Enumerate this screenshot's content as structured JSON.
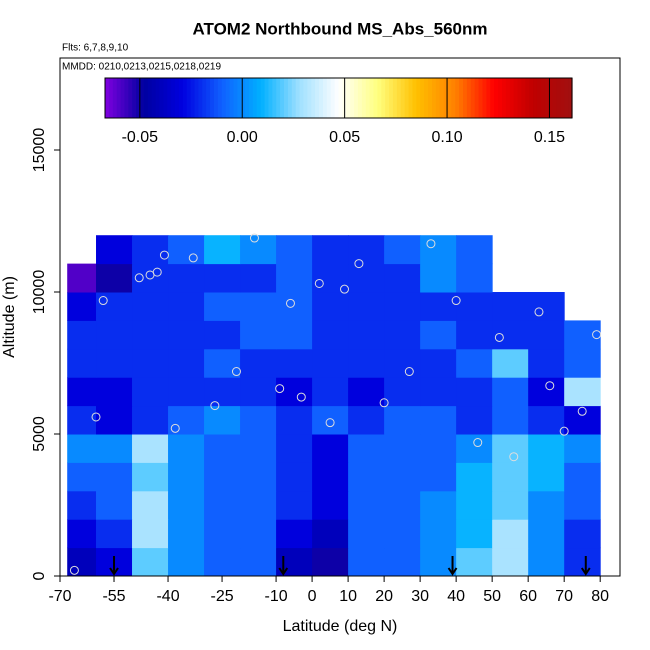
{
  "chart_data": {
    "type": "heatmap",
    "title": "ATOM2 Northbound MS_Abs_560nm",
    "subtitle": "Flts: 6,7,8,9,10",
    "annotation": "MMDD: 0210,0213,0215,0218,0219",
    "x_label": "Latitude (deg N)",
    "y_label": "Altitude (m)",
    "xlim": [
      -70,
      85.5
    ],
    "xticks": [
      -70,
      -55,
      -40,
      -25,
      -10,
      0,
      10,
      20,
      30,
      40,
      50,
      60,
      70,
      80
    ],
    "ylim": [
      0,
      18240
    ],
    "yticks": [
      0,
      5000,
      10000,
      15000
    ],
    "clim": [
      -0.067,
      0.161
    ],
    "cticks": [
      {
        "value": -0.05,
        "label": "-0.05"
      },
      {
        "value": 0,
        "label": "0.00"
      },
      {
        "value": 0.05,
        "label": "0.05"
      },
      {
        "value": 0.1,
        "label": "0.10"
      },
      {
        "value": 0.15,
        "label": "0.15"
      }
    ],
    "colors": [
      "#8000e0",
      "#0000a0",
      "#0000e0",
      "#1060ff",
      "#00b0ff",
      "#a0e0ff",
      "#ffffff",
      "#ffff80",
      "#ffc000",
      "#ff8000",
      "#ff0000",
      "#c00000",
      "#a01010"
    ],
    "x_edges": [
      -68,
      -60,
      -50,
      -40,
      -30,
      -20,
      -10,
      0,
      10,
      20,
      30,
      40,
      50,
      60,
      70,
      80
    ],
    "y_edges": [
      0,
      1000,
      2000,
      3000,
      4000,
      5000,
      6000,
      7000,
      8000,
      9000,
      10000,
      11000,
      12000
    ],
    "z": [
      [
        -0.04,
        -0.03,
        0.02,
        0.0,
        -0.01,
        -0.01,
        -0.04,
        -0.05,
        -0.01,
        -0.01,
        0.0,
        0.02,
        0.03,
        0.0,
        -0.02
      ],
      [
        -0.03,
        -0.02,
        0.03,
        0.0,
        -0.01,
        -0.01,
        -0.03,
        -0.04,
        -0.01,
        -0.01,
        0.0,
        0.01,
        0.03,
        0.0,
        -0.02
      ],
      [
        -0.02,
        -0.01,
        0.03,
        0.0,
        -0.01,
        -0.01,
        -0.02,
        -0.03,
        -0.01,
        -0.01,
        0.0,
        0.01,
        0.02,
        0.0,
        -0.01
      ],
      [
        -0.01,
        -0.01,
        0.02,
        0.0,
        -0.01,
        -0.01,
        -0.02,
        -0.03,
        -0.01,
        -0.01,
        -0.01,
        0.01,
        0.02,
        0.01,
        -0.01
      ],
      [
        0.0,
        0.0,
        0.03,
        0.0,
        -0.01,
        -0.01,
        -0.02,
        -0.03,
        -0.01,
        -0.01,
        -0.01,
        0.0,
        0.02,
        0.01,
        0.0
      ],
      [
        -0.02,
        -0.03,
        -0.02,
        -0.01,
        0.0,
        -0.01,
        -0.02,
        -0.01,
        -0.02,
        -0.01,
        -0.01,
        -0.02,
        -0.01,
        -0.02,
        -0.03
      ],
      [
        -0.03,
        -0.03,
        -0.02,
        -0.02,
        -0.02,
        -0.02,
        -0.03,
        -0.02,
        -0.03,
        -0.02,
        -0.02,
        -0.02,
        -0.01,
        -0.03,
        0.03
      ],
      [
        -0.02,
        -0.02,
        -0.02,
        -0.02,
        -0.01,
        -0.02,
        -0.02,
        -0.02,
        -0.02,
        -0.02,
        -0.02,
        -0.01,
        0.02,
        -0.02,
        -0.01
      ],
      [
        -0.02,
        -0.02,
        -0.02,
        -0.02,
        -0.02,
        -0.01,
        -0.01,
        -0.02,
        -0.02,
        -0.02,
        -0.01,
        -0.02,
        -0.02,
        -0.02,
        -0.01
      ],
      [
        -0.03,
        -0.02,
        -0.02,
        -0.02,
        -0.01,
        -0.01,
        -0.01,
        -0.02,
        -0.02,
        -0.02,
        -0.02,
        -0.02,
        -0.02,
        -0.02,
        null
      ],
      [
        -0.06,
        -0.05,
        -0.02,
        -0.02,
        -0.02,
        -0.02,
        -0.01,
        -0.02,
        -0.02,
        -0.02,
        0.0,
        -0.01,
        null,
        null,
        null
      ],
      [
        null,
        -0.03,
        -0.02,
        -0.01,
        0.01,
        0.0,
        -0.01,
        -0.02,
        -0.02,
        -0.01,
        0.0,
        -0.01,
        null,
        null,
        null
      ]
    ],
    "points": {
      "x": [
        -66,
        -60,
        -58,
        -48,
        -45,
        -43,
        -41,
        -38,
        -33,
        -27,
        -21,
        -16,
        -9,
        -6,
        -3,
        2,
        5,
        9,
        13,
        20,
        27,
        33,
        40,
        46,
        52,
        56,
        63,
        66,
        70,
        75,
        79
      ],
      "y": [
        200,
        5600,
        9700,
        10500,
        10600,
        10700,
        11300,
        5200,
        11200,
        6000,
        7200,
        11900,
        6600,
        9600,
        6300,
        10300,
        5400,
        10100,
        11000,
        6100,
        7200,
        11700,
        9700,
        4700,
        8400,
        4200,
        9300,
        6700,
        5100,
        5800,
        8500
      ]
    },
    "arrows_x": [
      -55,
      -8,
      39,
      76
    ]
  }
}
